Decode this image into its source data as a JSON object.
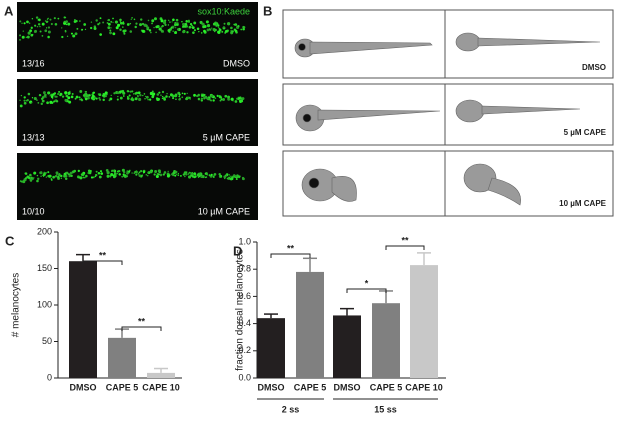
{
  "panel_a": {
    "label": "A",
    "marker": "sox10:Kaede",
    "images": [
      {
        "count": "13/16",
        "condition": "DMSO"
      },
      {
        "count": "13/13",
        "condition": "5 µM CAPE"
      },
      {
        "count": "10/10",
        "condition": "10 µM CAPE"
      }
    ]
  },
  "panel_b": {
    "label": "B",
    "rows": [
      "DMSO",
      "5 µM CAPE",
      "10 µM CAPE"
    ]
  },
  "chart_data": [
    {
      "type": "bar",
      "panel": "C",
      "y_label": "# melanocytes",
      "categories": [
        "DMSO",
        "CAPE 5",
        "CAPE 10"
      ],
      "values": [
        160,
        55,
        7
      ],
      "errors": [
        9,
        12,
        6
      ],
      "colors": [
        "#231f20",
        "#808080",
        "#c8c8c8"
      ],
      "ylim": [
        0,
        200
      ],
      "yticks": [
        0,
        50,
        100,
        150,
        200
      ],
      "annotations": [
        "**",
        "**"
      ]
    },
    {
      "type": "bar",
      "panel": "D",
      "y_label": "fraction dorsal melanocytes",
      "categories": [
        "DMSO",
        "CAPE 5",
        "DMSO",
        "CAPE 5",
        "CAPE 10"
      ],
      "groups": [
        "2 ss",
        "15 ss"
      ],
      "values": [
        0.44,
        0.78,
        0.46,
        0.55,
        0.83
      ],
      "errors": [
        0.03,
        0.1,
        0.05,
        0.09,
        0.09
      ],
      "colors": [
        "#231f20",
        "#808080",
        "#231f20",
        "#808080",
        "#c8c8c8"
      ],
      "ylim": [
        0,
        1
      ],
      "yticks": [
        {
          "value": 0,
          "label": "0.0"
        },
        0.2,
        0.4,
        0.6,
        0.8,
        {
          "value": 1,
          "label": "1.0"
        }
      ],
      "annotations": [
        "**",
        "*",
        "**"
      ]
    }
  ]
}
